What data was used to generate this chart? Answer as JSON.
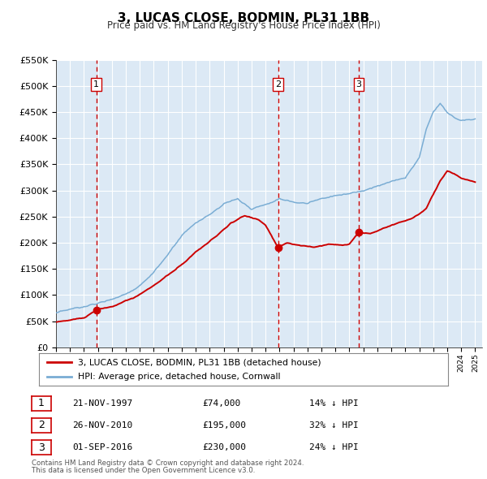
{
  "title": "3, LUCAS CLOSE, BODMIN, PL31 1BB",
  "subtitle": "Price paid vs. HM Land Registry's House Price Index (HPI)",
  "background_color": "#ffffff",
  "plot_bg_color": "#dce9f5",
  "grid_color": "#ffffff",
  "ylim": [
    0,
    550000
  ],
  "yticks": [
    0,
    50000,
    100000,
    150000,
    200000,
    250000,
    300000,
    350000,
    400000,
    450000,
    500000,
    550000
  ],
  "ytick_labels": [
    "£0",
    "£50K",
    "£100K",
    "£150K",
    "£200K",
    "£250K",
    "£300K",
    "£350K",
    "£400K",
    "£450K",
    "£500K",
    "£550K"
  ],
  "xlim_start": 1995.0,
  "xlim_end": 2025.5,
  "sale_color": "#cc0000",
  "hpi_color": "#7aadd4",
  "sale_marker_color": "#cc0000",
  "vline_color": "#cc0000",
  "label_sale": "3, LUCAS CLOSE, BODMIN, PL31 1BB (detached house)",
  "label_hpi": "HPI: Average price, detached house, Cornwall",
  "transactions": [
    {
      "num": 1,
      "date_str": "21-NOV-1997",
      "year": 1997.89,
      "price": 74000,
      "pct": "14%",
      "dir": "↓"
    },
    {
      "num": 2,
      "date_str": "26-NOV-2010",
      "year": 2010.9,
      "price": 195000,
      "pct": "32%",
      "dir": "↓"
    },
    {
      "num": 3,
      "date_str": "01-SEP-2016",
      "year": 2016.67,
      "price": 230000,
      "pct": "24%",
      "dir": "↓"
    }
  ],
  "footnote1": "Contains HM Land Registry data © Crown copyright and database right 2024.",
  "footnote2": "This data is licensed under the Open Government Licence v3.0.",
  "hpi_anchors_t": [
    1995.0,
    1996.0,
    1997.0,
    1998.0,
    1999.0,
    2000.0,
    2001.0,
    2002.0,
    2003.0,
    2004.0,
    2005.0,
    2006.0,
    2007.0,
    2008.0,
    2009.0,
    2010.0,
    2011.0,
    2012.0,
    2013.0,
    2014.0,
    2015.0,
    2016.0,
    2017.0,
    2018.0,
    2019.0,
    2020.0,
    2021.0,
    2021.5,
    2022.0,
    2022.5,
    2023.0,
    2023.5,
    2024.0,
    2025.0
  ],
  "hpi_anchors_v": [
    65000,
    68000,
    72000,
    78000,
    88000,
    100000,
    118000,
    145000,
    175000,
    210000,
    230000,
    245000,
    265000,
    275000,
    255000,
    265000,
    280000,
    270000,
    268000,
    278000,
    285000,
    290000,
    298000,
    308000,
    315000,
    320000,
    360000,
    415000,
    450000,
    465000,
    450000,
    440000,
    435000,
    440000
  ],
  "sale_anchors_t": [
    1995.0,
    1996.0,
    1997.0,
    1997.89,
    1999.0,
    2000.5,
    2002.0,
    2003.5,
    2005.0,
    2006.5,
    2007.5,
    2008.5,
    2009.5,
    2010.0,
    2010.9,
    2011.5,
    2012.5,
    2013.5,
    2014.5,
    2015.5,
    2016.0,
    2016.67,
    2017.5,
    2018.5,
    2019.5,
    2020.5,
    2021.5,
    2022.0,
    2022.5,
    2023.0,
    2023.5,
    2024.0,
    2025.0
  ],
  "sale_anchors_v": [
    48000,
    52000,
    58000,
    74000,
    80000,
    95000,
    120000,
    150000,
    185000,
    215000,
    240000,
    255000,
    248000,
    238000,
    195000,
    205000,
    200000,
    198000,
    205000,
    205000,
    208000,
    230000,
    228000,
    238000,
    248000,
    258000,
    278000,
    305000,
    330000,
    350000,
    345000,
    335000,
    328000
  ]
}
